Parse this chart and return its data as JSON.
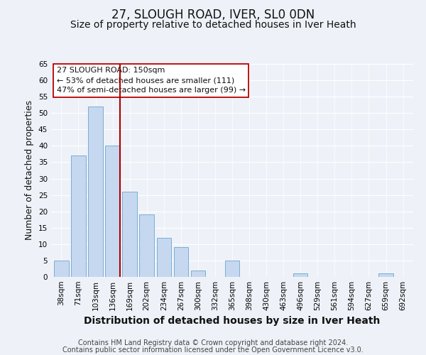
{
  "title": "27, SLOUGH ROAD, IVER, SL0 0DN",
  "subtitle": "Size of property relative to detached houses in Iver Heath",
  "xlabel": "Distribution of detached houses by size in Iver Heath",
  "ylabel": "Number of detached properties",
  "bar_labels": [
    "38sqm",
    "71sqm",
    "103sqm",
    "136sqm",
    "169sqm",
    "202sqm",
    "234sqm",
    "267sqm",
    "300sqm",
    "332sqm",
    "365sqm",
    "398sqm",
    "430sqm",
    "463sqm",
    "496sqm",
    "529sqm",
    "561sqm",
    "594sqm",
    "627sqm",
    "659sqm",
    "692sqm"
  ],
  "bar_values": [
    5,
    37,
    52,
    40,
    26,
    19,
    12,
    9,
    2,
    0,
    5,
    0,
    0,
    0,
    1,
    0,
    0,
    0,
    0,
    1,
    0
  ],
  "bar_color": "#c5d8f0",
  "bar_edge_color": "#7badd4",
  "marker_bar_index": 3,
  "marker_line_color": "#aa0000",
  "ylim": [
    0,
    65
  ],
  "yticks": [
    0,
    5,
    10,
    15,
    20,
    25,
    30,
    35,
    40,
    45,
    50,
    55,
    60,
    65
  ],
  "annotation_title": "27 SLOUGH ROAD: 150sqm",
  "annotation_line1": "← 53% of detached houses are smaller (111)",
  "annotation_line2": "47% of semi-detached houses are larger (99) →",
  "annotation_box_color": "#ffffff",
  "annotation_box_edge": "#bb0000",
  "footer_line1": "Contains HM Land Registry data © Crown copyright and database right 2024.",
  "footer_line2": "Contains public sector information licensed under the Open Government Licence v3.0.",
  "background_color": "#eef2f8",
  "grid_color": "#ffffff",
  "title_fontsize": 12,
  "subtitle_fontsize": 10,
  "xlabel_fontsize": 10,
  "ylabel_fontsize": 9,
  "tick_fontsize": 7.5,
  "annotation_fontsize": 8,
  "footer_fontsize": 7
}
